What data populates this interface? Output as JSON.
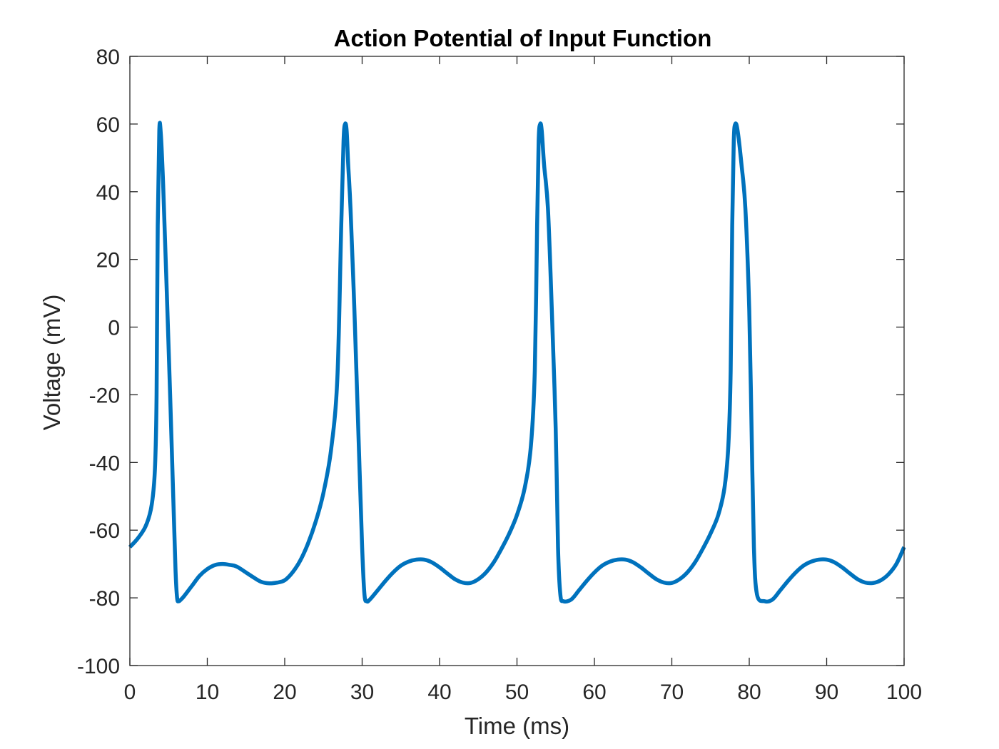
{
  "chart_data": {
    "type": "line",
    "title": "Action Potential of Input Function",
    "xlabel": "Time (ms)",
    "ylabel": "Voltage (mV)",
    "xlim": [
      0,
      100
    ],
    "ylim": [
      -100,
      80
    ],
    "xticks": [
      0,
      10,
      20,
      30,
      40,
      50,
      60,
      70,
      80,
      90,
      100
    ],
    "yticks": [
      -100,
      -80,
      -60,
      -40,
      -20,
      0,
      20,
      40,
      60,
      80
    ],
    "xtick_labels": [
      "0",
      "10",
      "20",
      "30",
      "40",
      "50",
      "60",
      "70",
      "80",
      "90",
      "100"
    ],
    "ytick_labels": [
      "-100",
      "-80",
      "-60",
      "-40",
      "-20",
      "0",
      "20",
      "40",
      "60",
      "80"
    ],
    "grid": false,
    "series": [
      {
        "color": "#0072BD",
        "x": [
          0,
          1,
          2,
          2.7,
          3.1,
          3.3,
          3.45,
          3.6,
          3.8,
          4.0,
          4.3,
          4.7,
          5.2,
          5.6,
          5.9,
          6.1,
          6.3,
          6.6,
          7,
          8,
          9,
          10,
          11,
          12,
          13,
          13.5,
          14,
          15,
          16,
          17,
          18,
          19,
          20,
          21,
          22,
          23,
          24,
          25,
          26,
          26.8,
          27.3,
          27.6,
          27.8,
          28.0,
          28.2,
          28.5,
          29,
          29.5,
          30.0,
          30.3,
          30.6,
          31,
          32,
          33,
          34,
          35,
          36,
          37,
          38,
          39,
          40,
          41,
          42,
          43,
          44,
          45,
          46,
          47,
          48,
          49,
          50,
          51,
          51.8,
          52.3,
          52.6,
          52.8,
          53.0,
          53.2,
          53.5,
          54,
          54.5,
          55.0,
          55.3,
          55.6,
          56,
          57,
          58,
          59,
          60,
          61,
          62,
          63,
          64,
          65,
          66,
          67,
          68,
          69,
          70,
          71,
          72,
          73,
          74,
          75,
          76,
          76.8,
          77.3,
          77.6,
          77.8,
          78.0,
          78.2,
          78.5,
          79,
          79.5,
          80.0,
          80.3,
          80.6,
          81,
          82,
          83,
          84,
          85,
          86,
          87,
          88,
          89,
          90,
          91,
          92,
          93,
          94,
          95,
          96,
          97,
          98,
          99,
          100
        ],
        "y": [
          -65,
          -62.5,
          -59,
          -54,
          -47,
          -38,
          -20,
          30,
          58,
          57,
          42,
          15,
          -20,
          -50,
          -72,
          -80,
          -81,
          -80.5,
          -79.5,
          -76.5,
          -73.5,
          -71.5,
          -70.3,
          -70,
          -70.3,
          -70.5,
          -71,
          -72.5,
          -74,
          -75.3,
          -75.7,
          -75.5,
          -74.8,
          -72.5,
          -69,
          -64,
          -57.5,
          -49,
          -36,
          -15,
          30,
          55,
          60,
          58,
          48,
          35,
          5,
          -30,
          -65,
          -79,
          -81,
          -80.5,
          -77.8,
          -75,
          -72.5,
          -70.5,
          -69.3,
          -68.7,
          -68.7,
          -69.5,
          -71,
          -72.8,
          -74.5,
          -75.5,
          -75.6,
          -74.5,
          -72.5,
          -69.5,
          -65.5,
          -61,
          -55.5,
          -47.5,
          -35,
          -13,
          30,
          55,
          60,
          58,
          48,
          35,
          5,
          -30,
          -65,
          -79,
          -81,
          -80.5,
          -77.8,
          -75,
          -72.5,
          -70.5,
          -69.3,
          -68.7,
          -68.7,
          -69.5,
          -71,
          -72.8,
          -74.5,
          -75.5,
          -75.6,
          -74.5,
          -72.5,
          -69.5,
          -65.5,
          -61,
          -55.5,
          -47.5,
          -35,
          -13,
          30,
          55,
          60,
          58,
          48,
          35,
          5,
          -30,
          -65,
          -79,
          -81,
          -80.5,
          -77.8,
          -75,
          -72.5,
          -70.5,
          -69.3,
          -68.7,
          -68.7,
          -69.5,
          -71,
          -72.8,
          -74.5,
          -75.5,
          -75.6,
          -74.8,
          -73,
          -70,
          -65
        ]
      }
    ]
  }
}
